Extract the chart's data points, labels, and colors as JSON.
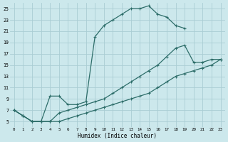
{
  "xlabel": "Humidex (Indice chaleur)",
  "background_color": "#cce8ec",
  "grid_color": "#aacdd4",
  "line_color": "#2e6e6a",
  "xlim": [
    -0.5,
    23.5
  ],
  "ylim": [
    4.0,
    26.0
  ],
  "xticks": [
    0,
    1,
    2,
    3,
    4,
    5,
    6,
    7,
    8,
    9,
    10,
    11,
    12,
    13,
    14,
    15,
    16,
    17,
    18,
    19,
    20,
    21,
    22,
    23
  ],
  "yticks": [
    5,
    7,
    9,
    11,
    13,
    15,
    17,
    19,
    21,
    23,
    25
  ],
  "line1_x": [
    0,
    1,
    2,
    3,
    4,
    5,
    6,
    7,
    8,
    9,
    10,
    11,
    12,
    13,
    14,
    15,
    16,
    17,
    18,
    19,
    20,
    21,
    22,
    23
  ],
  "line1_y": [
    7,
    6,
    5,
    5,
    9.5,
    9.5,
    8,
    8,
    8.5,
    20,
    22,
    23,
    24,
    25,
    25,
    25.5,
    24,
    23.5,
    22,
    21.5,
    null,
    null,
    null,
    null
  ],
  "line2_x": [
    0,
    1,
    2,
    3,
    4,
    5,
    6,
    7,
    8,
    9,
    10,
    11,
    12,
    13,
    14,
    15,
    16,
    17,
    18,
    19,
    20,
    21,
    22,
    23
  ],
  "line2_y": [
    7,
    6,
    5,
    5,
    5,
    6.5,
    7,
    7.5,
    8,
    8.5,
    9,
    10,
    11,
    12,
    13,
    14,
    15,
    16.5,
    18,
    18.5,
    15.5,
    15.5,
    16,
    16
  ],
  "line3_x": [
    0,
    1,
    2,
    3,
    4,
    5,
    6,
    7,
    8,
    9,
    10,
    11,
    12,
    13,
    14,
    15,
    16,
    17,
    18,
    19,
    20,
    21,
    22,
    23
  ],
  "line3_y": [
    7,
    6,
    5,
    5,
    5,
    5,
    5.5,
    6,
    6.5,
    7,
    7.5,
    8,
    8.5,
    9,
    9.5,
    10,
    11,
    12,
    13,
    13.5,
    14,
    14.5,
    15,
    16
  ]
}
